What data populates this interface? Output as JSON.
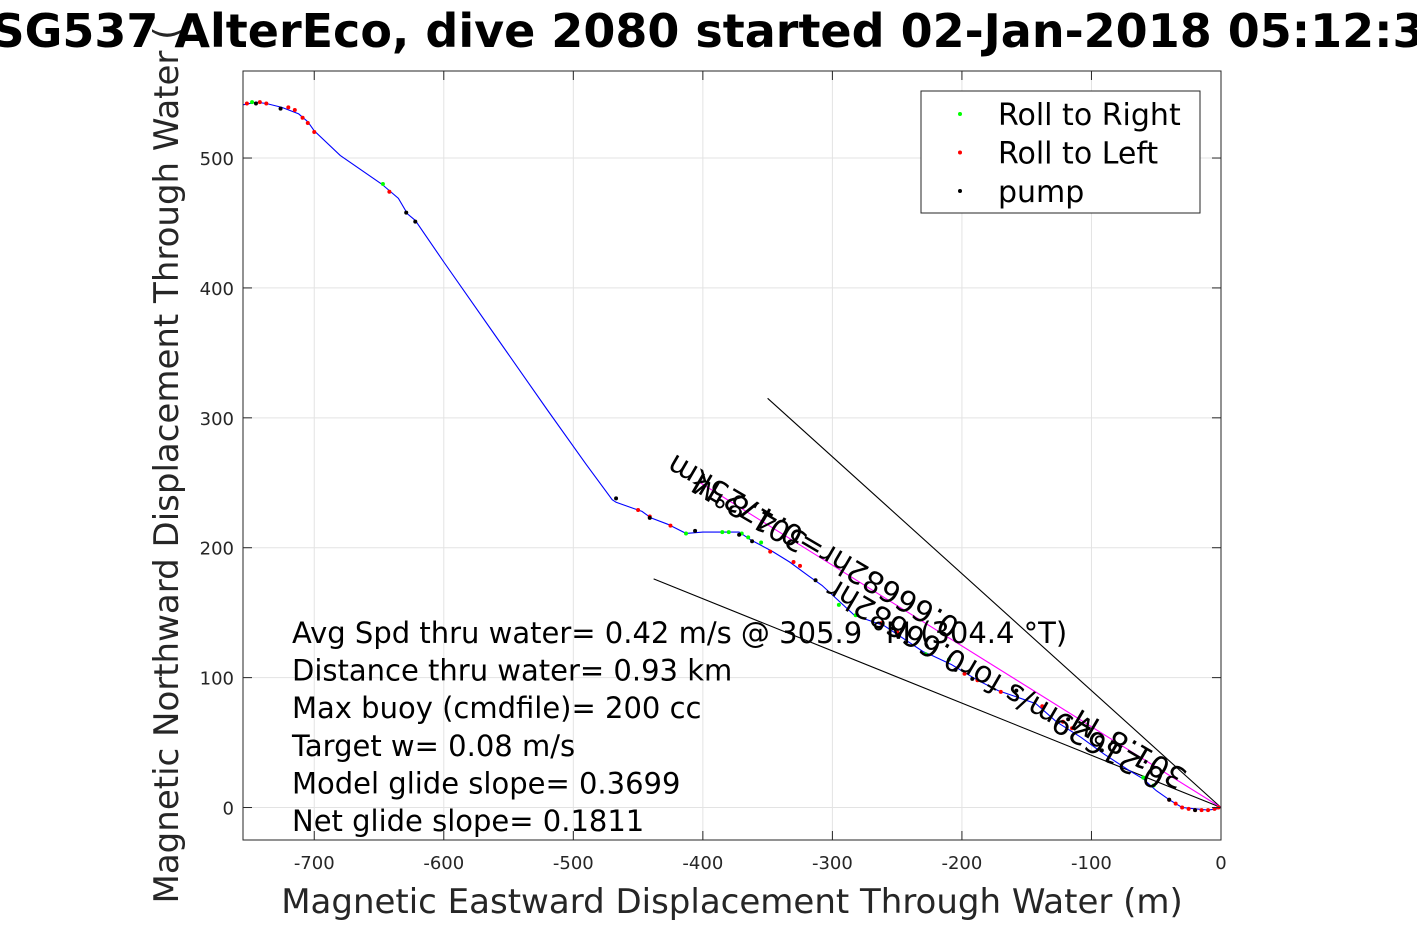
{
  "chart_data": {
    "type": "scatter",
    "title": "SG537 AlterEco, dive 2080 started 02-Jan-2018 05:12:3",
    "xlabel": "Magnetic Eastward Displacement Through Water (m)",
    "ylabel": "Magnetic Northward Displacement Through Water (",
    "xlim": [
      -755,
      0
    ],
    "ylim": [
      -25,
      567
    ],
    "xticks": [
      -700,
      -600,
      -500,
      -400,
      -300,
      -200,
      -100,
      0
    ],
    "yticks": [
      0,
      100,
      200,
      300,
      400,
      500
    ],
    "xtick_labels": [
      "-700",
      "-600",
      "-500",
      "-400",
      "-300",
      "-200",
      "-100",
      "0"
    ],
    "ytick_labels": [
      "0",
      "100",
      "200",
      "300",
      "400",
      "500"
    ],
    "grid": true,
    "legend_position": "top-right",
    "legend": [
      {
        "label": "Roll to Right",
        "color": "#00ff00"
      },
      {
        "label": "Roll to Left",
        "color": "#ff0000"
      },
      {
        "label": "pump",
        "color": "#000000"
      }
    ],
    "track": {
      "name": "track",
      "color": "#0000ff",
      "x": [
        -755,
        -745,
        -737,
        -725,
        -712,
        -705,
        -700,
        -680,
        -648,
        -635,
        -628,
        -622,
        -600,
        -560,
        -520,
        -490,
        -470,
        -467,
        -447,
        -440,
        -427,
        -413,
        -400,
        -372,
        -363,
        -346,
        -333,
        -318,
        -308,
        -283,
        -260,
        -230,
        -223,
        -208,
        -188,
        -172,
        -143,
        -127,
        -108,
        -90,
        -70,
        -60,
        -50,
        -40,
        -30,
        -20,
        -10,
        -3,
        0
      ],
      "y": [
        541,
        543,
        542,
        539,
        534,
        528,
        521,
        502,
        480,
        469,
        457,
        452,
        420,
        363,
        306,
        264,
        237,
        235,
        228,
        223,
        218,
        211,
        212,
        212,
        206,
        197,
        189,
        178,
        171,
        148,
        140,
        120,
        117,
        110,
        98,
        90,
        80,
        66,
        54,
        41,
        28,
        22,
        13,
        6,
        0,
        -1,
        -2,
        -1,
        0
      ]
    },
    "series": [
      {
        "name": "Roll to Right",
        "color": "#00ff00",
        "x": [
          -748,
          -647,
          -413,
          -385,
          -380,
          -370,
          -365,
          -355,
          -295,
          -282,
          -228,
          -210,
          -60,
          -52
        ],
        "y": [
          543,
          480,
          211,
          212,
          212,
          211,
          208,
          204,
          156,
          148,
          118,
          114,
          23,
          17
        ]
      },
      {
        "name": "Roll to Left",
        "color": "#ff0000",
        "x": [
          -752,
          -742,
          -737,
          -720,
          -715,
          -709,
          -705,
          -700,
          -642,
          -450,
          -441,
          -425,
          -348,
          -330,
          -325,
          -262,
          -250,
          -198,
          -188,
          -170,
          -138,
          -122,
          -115,
          -40,
          -35,
          -30,
          -25,
          -20,
          -15,
          -10,
          -5,
          -2
        ],
        "y": [
          542,
          543,
          542,
          539,
          537,
          531,
          527,
          520,
          474,
          229,
          224,
          217,
          197,
          189,
          186,
          142,
          135,
          103,
          98,
          89,
          78,
          66,
          61,
          6,
          3,
          0,
          -1,
          -2,
          -2,
          -2,
          -1,
          0
        ]
      },
      {
        "name": "pump",
        "color": "#000000",
        "x": [
          -745,
          -726,
          -629,
          -622,
          -467,
          -441,
          -406,
          -372,
          -362,
          -313,
          -253,
          -205,
          -192,
          -158,
          -118,
          -92,
          -40,
          -20
        ],
        "y": [
          542,
          538,
          458,
          451,
          238,
          223,
          213,
          210,
          205,
          175,
          138,
          106,
          99,
          90,
          68,
          44,
          6,
          -2
        ]
      }
    ],
    "lines": [
      {
        "name": "current",
        "color": "#000000",
        "x": [
          -350,
          0
        ],
        "y": [
          315,
          0
        ]
      },
      {
        "name": "net",
        "color": "#000000",
        "x": [
          -438,
          0
        ],
        "y": [
          176,
          0
        ]
      },
      {
        "name": "dive-average",
        "color": "#ff00ff",
        "x": [
          -402,
          0
        ],
        "y": [
          250,
          0
        ]
      }
    ],
    "annotations": [
      {
        "text": "301.8°M",
        "x": -360,
        "y": 234,
        "angle": 30.3
      },
      {
        "text": "0.66682hr=0.4725km",
        "x": -311,
        "y": 208,
        "angle": 30.3
      },
      {
        "text": "301.8°M",
        "x": -67,
        "y": 52,
        "angle": 30.3
      },
      {
        "text": "0.21629m/s for0.66682hr",
        "x": -170,
        "y": 102,
        "angle": 30.3
      }
    ],
    "stats": [
      "Avg Spd thru water=  0.42 m/s @ 305.9 °M (304.4 °T)",
      "Distance thru water=  0.93 km",
      "Max buoy (cmdfile)= 200 cc",
      "Target w= 0.08 m/s",
      "Model glide slope= 0.3699",
      "Net glide slope= 0.1811"
    ]
  }
}
